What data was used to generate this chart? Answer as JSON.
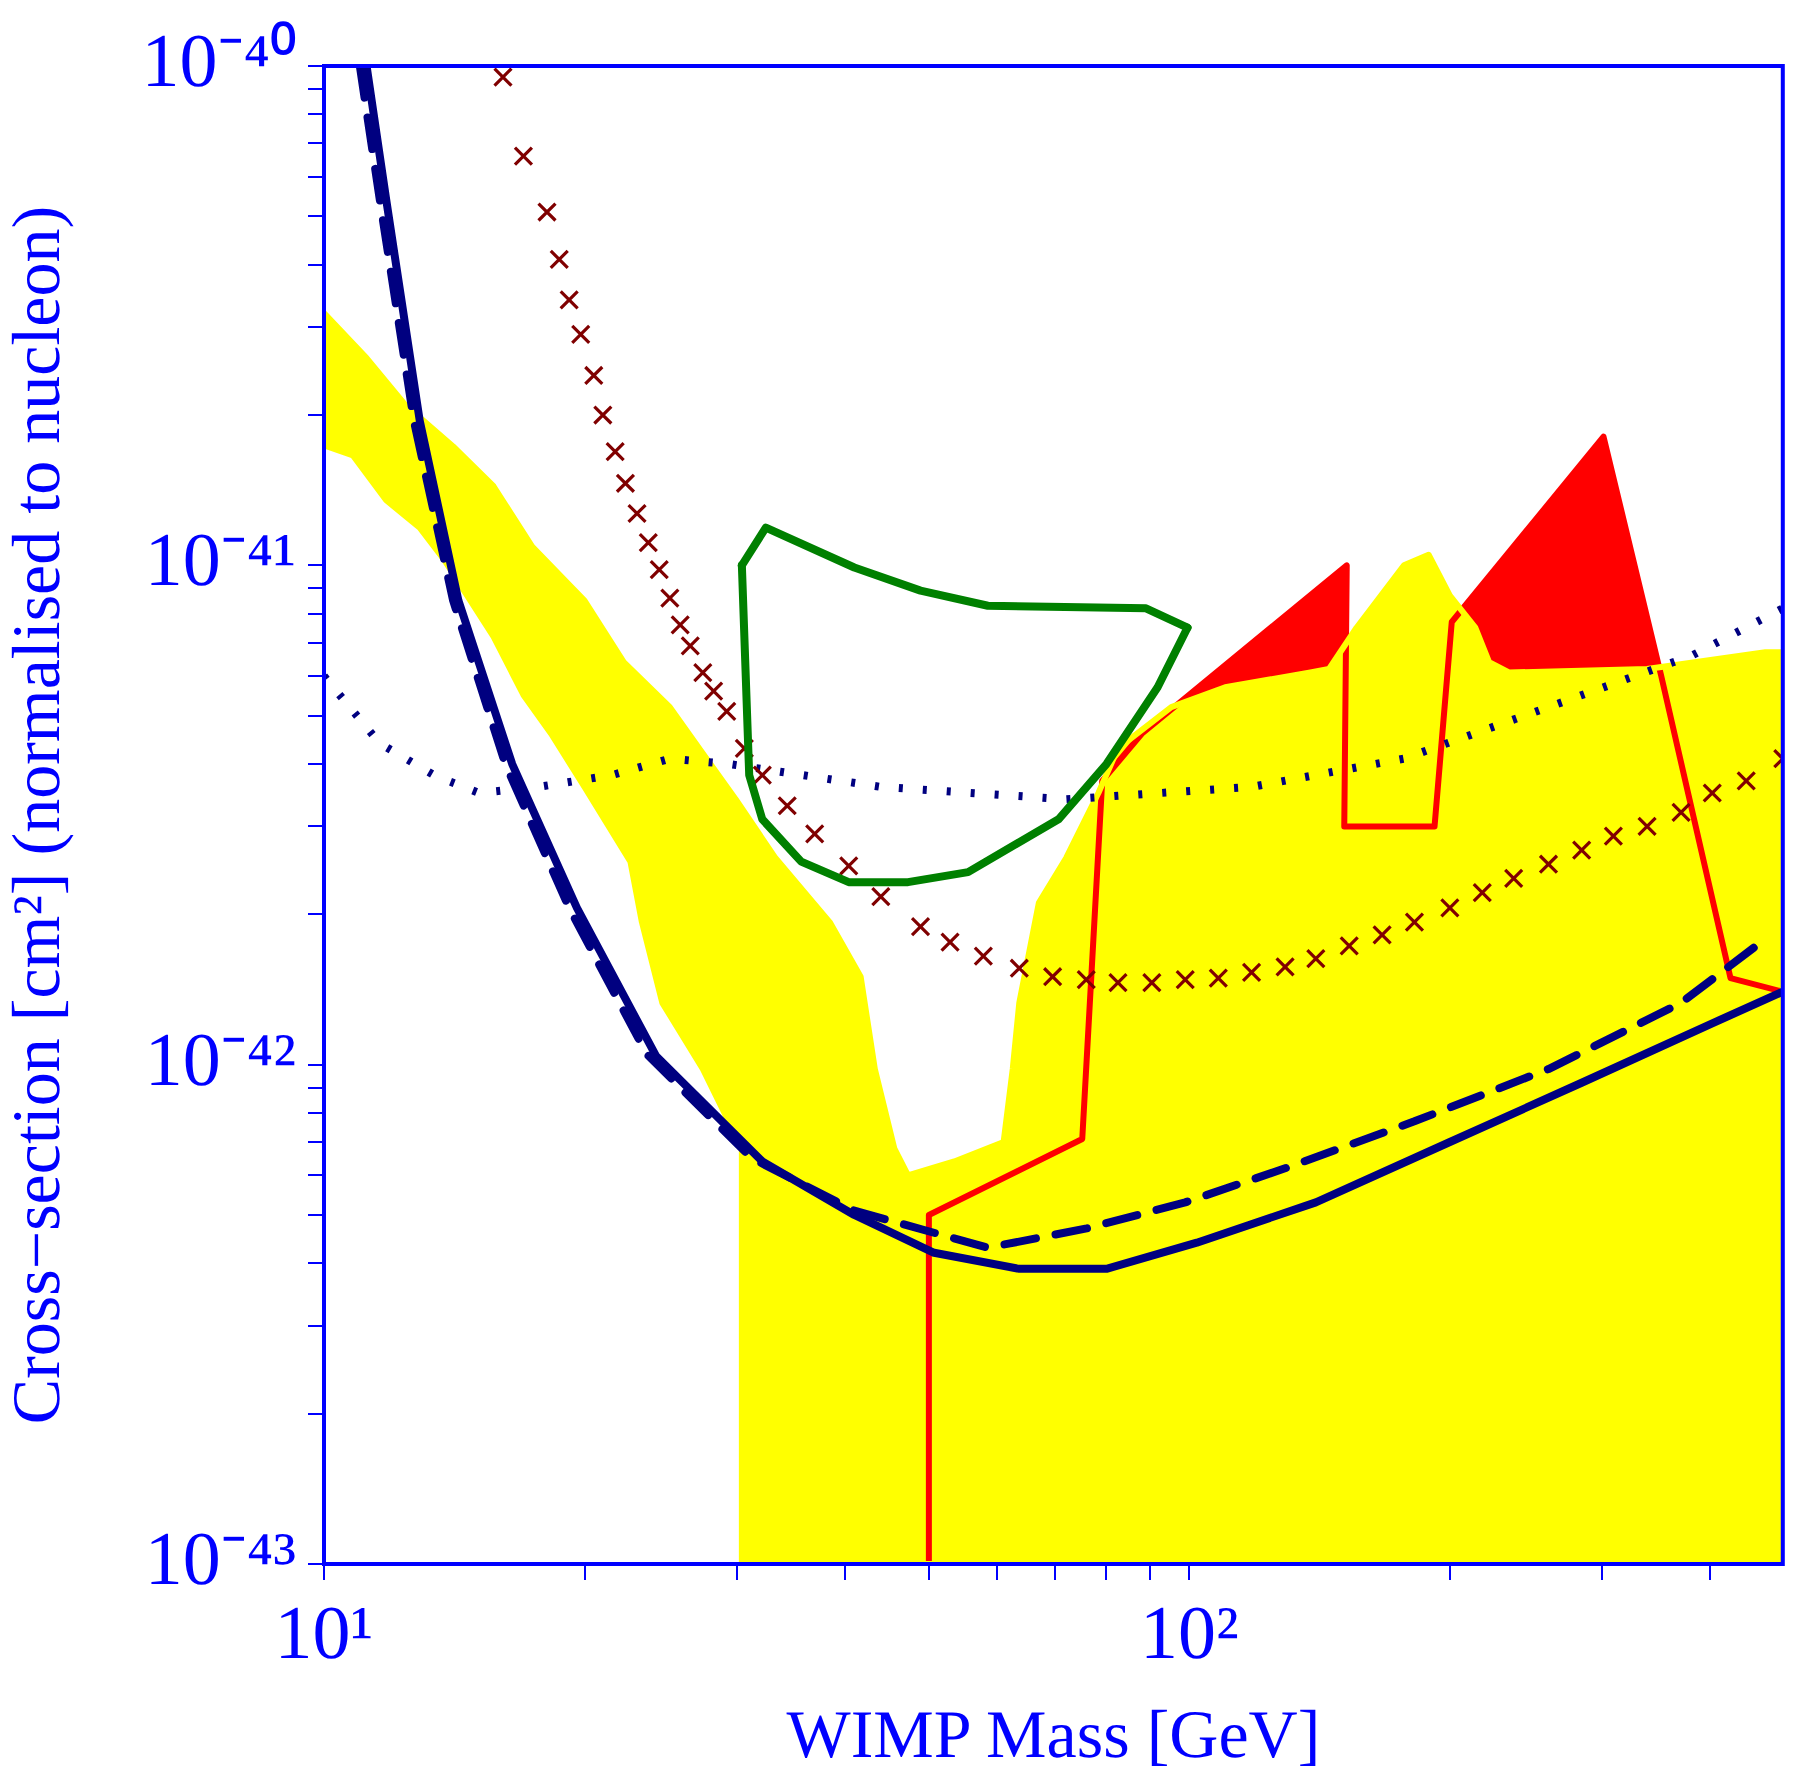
{
  "chart_data": {
    "type": "line",
    "xlabel": "WIMP Mass [GeV]",
    "ylabel": "Cross−section [cm²] (normalised to nucleon)",
    "log": "xy",
    "grid": false,
    "xlim": [
      10,
      485
    ],
    "ylim": [
      1e-43,
      1e-40
    ],
    "xticks": [
      {
        "value": 10,
        "label": "10¹"
      },
      {
        "value": 20,
        "label": null
      },
      {
        "value": 30,
        "label": null
      },
      {
        "value": 40,
        "label": null
      },
      {
        "value": 50,
        "label": null
      },
      {
        "value": 60,
        "label": null
      },
      {
        "value": 70,
        "label": null
      },
      {
        "value": 80,
        "label": null
      },
      {
        "value": 90,
        "label": null
      },
      {
        "value": 100,
        "label": "10²"
      },
      {
        "value": 200,
        "label": null
      },
      {
        "value": 300,
        "label": null
      },
      {
        "value": 400,
        "label": null
      }
    ],
    "yticks": [
      {
        "value": 1e-43,
        "label": "10⁻⁴³"
      },
      {
        "value": 2e-43,
        "label": null
      },
      {
        "value": 3e-43,
        "label": null
      },
      {
        "value": 4e-43,
        "label": null
      },
      {
        "value": 5e-43,
        "label": null
      },
      {
        "value": 6e-43,
        "label": null
      },
      {
        "value": 7e-43,
        "label": null
      },
      {
        "value": 8e-43,
        "label": null
      },
      {
        "value": 9e-43,
        "label": null
      },
      {
        "value": 1e-42,
        "label": "10⁻⁴²"
      },
      {
        "value": 2e-42,
        "label": null
      },
      {
        "value": 3e-42,
        "label": null
      },
      {
        "value": 4e-42,
        "label": null
      },
      {
        "value": 5e-42,
        "label": null
      },
      {
        "value": 6e-42,
        "label": null
      },
      {
        "value": 7e-42,
        "label": null
      },
      {
        "value": 8e-42,
        "label": null
      },
      {
        "value": 9e-42,
        "label": null
      },
      {
        "value": 1e-41,
        "label": "10⁻⁴¹"
      },
      {
        "value": 2e-41,
        "label": null
      },
      {
        "value": 3e-41,
        "label": null
      },
      {
        "value": 4e-41,
        "label": null
      },
      {
        "value": 5e-41,
        "label": null
      },
      {
        "value": 6e-41,
        "label": null
      },
      {
        "value": 7e-41,
        "label": null
      },
      {
        "value": 8e-41,
        "label": null
      },
      {
        "value": 9e-41,
        "label": null
      },
      {
        "value": 1e-40,
        "label": "10⁻⁴⁰"
      }
    ],
    "series": [
      {
        "type": "area",
        "color": "#ff0000",
        "x": [
          50,
          50,
          75.2,
          79.3,
          88.1,
          152,
          151,
          192,
          201,
          301,
          351,
          422,
          485
        ],
        "values": [
          1e-43,
          5e-43,
          7.1e-43,
          3.7e-42,
          4.6e-42,
          1e-41,
          3e-42,
          3e-42,
          7.7e-42,
          1.81e-41,
          6e-42,
          1.49e-42,
          1.4e-42
        ]
      },
      {
        "type": "area",
        "color": "#ffff00",
        "x": [
          10,
          11.2,
          12.4,
          14.1,
          15.7,
          17.4,
          20.0,
          22.2,
          25.1,
          27.4,
          29.9,
          33.2,
          38.4,
          41.7,
          43.3,
          45.6,
          47.3,
          53.5,
          61.0,
          62.5,
          63.6,
          67.0,
          72.1,
          78.5,
          82.7,
          95.3,
          110,
          138,
          145,
          156,
          177,
          189,
          200,
          214,
          222,
          234,
          338,
          463,
          485,
          485,
          30.4,
          30.4,
          27.4,
          24.6,
          23.3,
          22.6,
          20.0,
          18.3,
          17.0,
          15.7,
          13.8,
          12.9,
          11.8,
          10.8,
          10
        ],
        "values": [
          3.2e-41,
          2.6e-41,
          2.1e-41,
          1.73e-41,
          1.44e-41,
          1.09e-41,
          8.5e-42,
          6.4e-42,
          5.2e-42,
          4.2e-42,
          3.4e-42,
          2.6e-42,
          1.93e-42,
          1.5e-42,
          9.8e-43,
          6.8e-43,
          6e-43,
          6.4e-43,
          7e-43,
          9.8e-43,
          1.33e-42,
          2.11e-42,
          2.6e-42,
          3.5e-42,
          4.3e-42,
          5.2e-42,
          5.7e-42,
          6.1e-42,
          6.2e-42,
          7.5e-42,
          1e-41,
          1.05e-41,
          8.7e-42,
          7.5e-42,
          6.4e-42,
          6.1e-42,
          6.2e-42,
          6.7e-42,
          6.7e-42,
          1e-43,
          1e-43,
          6.8e-43,
          9.8e-43,
          1.33e-42,
          1.93e-42,
          2.55e-42,
          3.6e-42,
          4.6e-42,
          5.5e-42,
          7.2e-42,
          1.02e-41,
          1.19e-41,
          1.35e-41,
          1.66e-41,
          1.74e-41
        ]
      },
      {
        "color": "#000080",
        "line_style": "dotted",
        "x": [
          10,
          11.6,
          13.4,
          15.1,
          17.7,
          21.5,
          25.1,
          29.4,
          44.0,
          72.1,
          118,
          177,
          260,
          381,
          485
        ],
        "values": [
          6e-42,
          4.4e-42,
          3.8e-42,
          3.5e-42,
          3.6e-42,
          3.8e-42,
          4.1e-42,
          4e-42,
          3.6e-42,
          3.4e-42,
          3.6e-42,
          4.1e-42,
          5.2e-42,
          6.6e-42,
          8.2e-42
        ]
      },
      {
        "type": "scatter",
        "color": "#800000",
        "marker": "cross",
        "x": [
          16.1,
          17.0,
          18.1,
          18.7,
          19.2,
          19.8,
          20.5,
          21.0,
          21.7,
          22.3,
          23.0,
          23.7,
          24.4,
          25.1,
          25.8,
          26.5,
          27.4,
          28.2,
          29.2,
          30.6,
          32.1,
          34.3,
          36.9,
          40.4,
          44.0,
          48.9,
          52.9,
          57.8,
          63.6,
          69.5,
          76.0,
          82.7,
          90.5,
          98.9,
          108,
          118,
          129,
          140,
          153,
          167,
          182,
          200,
          218,
          237,
          260,
          284,
          309,
          338,
          370,
          402,
          440,
          485
        ],
        "values": [
          9.5e-41,
          6.6e-41,
          5.1e-41,
          4.1e-41,
          3.4e-41,
          2.9e-41,
          2.4e-41,
          2e-41,
          1.69e-41,
          1.46e-41,
          1.27e-41,
          1.11e-41,
          9.8e-42,
          8.6e-42,
          7.6e-42,
          6.9e-42,
          6.1e-42,
          5.6e-42,
          5.1e-42,
          4.3e-42,
          3.8e-42,
          3.3e-42,
          2.9e-42,
          2.5e-42,
          2.17e-42,
          1.89e-42,
          1.76e-42,
          1.65e-42,
          1.56e-42,
          1.5e-42,
          1.48e-42,
          1.46e-42,
          1.46e-42,
          1.48e-42,
          1.49e-42,
          1.53e-42,
          1.57e-42,
          1.63e-42,
          1.73e-42,
          1.82e-42,
          1.93e-42,
          2.06e-42,
          2.21e-42,
          2.36e-42,
          2.52e-42,
          2.69e-42,
          2.87e-42,
          3e-42,
          3.2e-42,
          3.5e-42,
          3.7e-42,
          4.1e-42
        ]
      },
      {
        "color": "#008000",
        "x": [
          30.4,
          32.4,
          41.0,
          48.9,
          58.5,
          89.1,
          99.5
        ],
        "values": [
          1e-41,
          1.19e-41,
          9.9e-42,
          8.9e-42,
          8.3e-42,
          8.2e-42,
          7.5e-42
        ]
      },
      {
        "color": "#008000",
        "x": [
          30.4,
          31.0,
          32.1,
          35.6,
          40.4,
          47.3,
          55.5,
          70.6,
          80.2,
          91.9,
          99.5
        ],
        "values": [
          1e-41,
          3.8e-42,
          3.1e-42,
          2.55e-42,
          2.32e-42,
          2.32e-42,
          2.43e-42,
          3.1e-42,
          4e-42,
          5.7e-42,
          7.5e-42
        ]
      },
      {
        "color": "#000080",
        "line_style": "dashed",
        "x": [
          11.0,
          11.6,
          12.7,
          14.1,
          16.2,
          19.2,
          23.6,
          31.2,
          41.0,
          58.5,
          76.1,
          98.9,
          129,
          182,
          260,
          370,
          458
        ],
        "values": [
          1e-40,
          5.4e-41,
          1.95e-41,
          8.5e-42,
          4e-42,
          2.06e-42,
          1.05e-42,
          6.5e-43,
          5.1e-43,
          4.3e-43,
          4.7e-43,
          5.3e-43,
          6.2e-43,
          7.7e-43,
          9.8e-43,
          1.33e-42,
          1.76e-42
        ]
      },
      {
        "color": "#000080",
        "line_style": "solid",
        "x": [
          11.2,
          11.8,
          12.9,
          14.3,
          16.5,
          19.6,
          24.2,
          32.1,
          41.0,
          50.7,
          63.6,
          80.2,
          102,
          140,
          200,
          284,
          402,
          485
        ],
        "values": [
          1e-40,
          5.4e-41,
          1.95e-41,
          8.5e-42,
          4e-42,
          2.06e-42,
          1.04e-42,
          6.4e-43,
          5e-43,
          4.2e-43,
          3.9e-43,
          3.9e-43,
          4.4e-43,
          5.3e-43,
          7e-43,
          9.2e-43,
          1.21e-42,
          1.4e-42
        ]
      }
    ]
  }
}
